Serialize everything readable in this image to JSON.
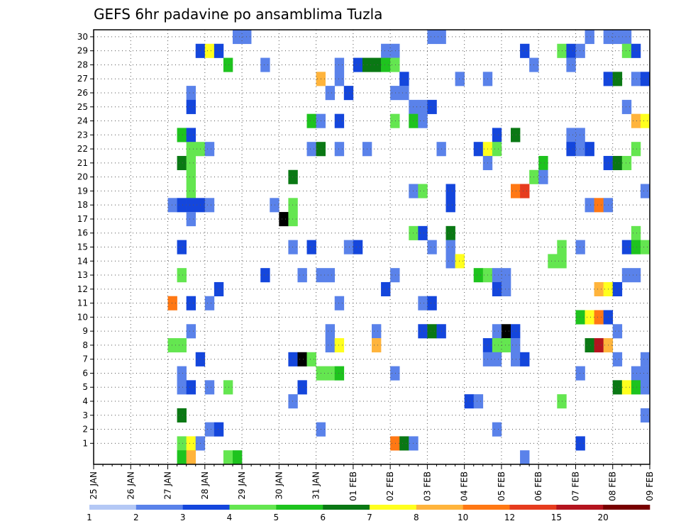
{
  "chart_data": {
    "type": "heatmap",
    "title": "GEFS 6hr padavine po ansamblima Tuzla",
    "xlabel": "",
    "ylabel": "",
    "y_ticks": [
      "1",
      "2",
      "3",
      "4",
      "5",
      "6",
      "7",
      "8",
      "9",
      "10",
      "11",
      "12",
      "13",
      "14",
      "15",
      "16",
      "17",
      "18",
      "19",
      "20",
      "21",
      "22",
      "23",
      "24",
      "25",
      "26",
      "27",
      "28",
      "29",
      "30"
    ],
    "x_ticks": [
      "25 JAN",
      "26 JAN",
      "27 JAN",
      "28 JAN",
      "29 JAN",
      "30 JAN",
      "31 JAN",
      "01 FEB",
      "02 FEB",
      "03 FEB",
      "04 FEB",
      "05 FEB",
      "06 FEB",
      "07 FEB",
      "08 FEB",
      "09 FEB"
    ],
    "x_steps": 60,
    "members": 30,
    "grid": true,
    "legend": {
      "position": "bottom",
      "labels": [
        "1",
        "2",
        "3",
        "4",
        "5",
        "6",
        "7",
        "8",
        "10",
        "12",
        "15",
        "20"
      ],
      "colors": [
        "#b4c8f5",
        "#5a82ea",
        "#1446dc",
        "#64e650",
        "#1ec31e",
        "#0a7814",
        "#ffff1e",
        "#ffb43c",
        "#ff7814",
        "#e63c1e",
        "#b4141e",
        "#780000"
      ]
    },
    "cells": [
      [
        15,
        30,
        1
      ],
      [
        16,
        30,
        1
      ],
      [
        36,
        30,
        1
      ],
      [
        37,
        30,
        1
      ],
      [
        53,
        30,
        1
      ],
      [
        55,
        30,
        1
      ],
      [
        56,
        30,
        1
      ],
      [
        57,
        30,
        1
      ],
      [
        11,
        29,
        2
      ],
      [
        12,
        29,
        6
      ],
      [
        13,
        29,
        2
      ],
      [
        31,
        29,
        1
      ],
      [
        32,
        29,
        1
      ],
      [
        46,
        29,
        2
      ],
      [
        50,
        29,
        3
      ],
      [
        51,
        29,
        2
      ],
      [
        52,
        29,
        1
      ],
      [
        57,
        29,
        3
      ],
      [
        58,
        29,
        2
      ],
      [
        14,
        28,
        4
      ],
      [
        18,
        28,
        1
      ],
      [
        26,
        28,
        1
      ],
      [
        28,
        28,
        2
      ],
      [
        29,
        28,
        5
      ],
      [
        30,
        28,
        5
      ],
      [
        31,
        28,
        4
      ],
      [
        32,
        28,
        3
      ],
      [
        47,
        28,
        1
      ],
      [
        51,
        28,
        1
      ],
      [
        24,
        27,
        7
      ],
      [
        26,
        27,
        1
      ],
      [
        33,
        27,
        2
      ],
      [
        39,
        27,
        1
      ],
      [
        42,
        27,
        1
      ],
      [
        55,
        27,
        2
      ],
      [
        56,
        27,
        5
      ],
      [
        58,
        27,
        1
      ],
      [
        59,
        27,
        2
      ],
      [
        10,
        26,
        1
      ],
      [
        25,
        26,
        1
      ],
      [
        27,
        26,
        2
      ],
      [
        32,
        26,
        1
      ],
      [
        33,
        26,
        1
      ],
      [
        10,
        25,
        2
      ],
      [
        34,
        25,
        1
      ],
      [
        35,
        25,
        1
      ],
      [
        36,
        25,
        2
      ],
      [
        57,
        25,
        1
      ],
      [
        23,
        24,
        4
      ],
      [
        24,
        24,
        1
      ],
      [
        26,
        24,
        2
      ],
      [
        32,
        24,
        3
      ],
      [
        34,
        24,
        4
      ],
      [
        35,
        24,
        1
      ],
      [
        58,
        24,
        7
      ],
      [
        59,
        24,
        6
      ],
      [
        9,
        23,
        4
      ],
      [
        10,
        23,
        2
      ],
      [
        43,
        23,
        2
      ],
      [
        45,
        23,
        5
      ],
      [
        51,
        23,
        1
      ],
      [
        52,
        23,
        1
      ],
      [
        10,
        22,
        3
      ],
      [
        11,
        22,
        3
      ],
      [
        12,
        22,
        1
      ],
      [
        23,
        22,
        1
      ],
      [
        24,
        22,
        5
      ],
      [
        26,
        22,
        1
      ],
      [
        29,
        22,
        1
      ],
      [
        37,
        22,
        1
      ],
      [
        41,
        22,
        2
      ],
      [
        42,
        22,
        6
      ],
      [
        43,
        22,
        3
      ],
      [
        51,
        22,
        2
      ],
      [
        52,
        22,
        1
      ],
      [
        53,
        22,
        2
      ],
      [
        58,
        22,
        3
      ],
      [
        9,
        21,
        5
      ],
      [
        10,
        21,
        3
      ],
      [
        42,
        21,
        1
      ],
      [
        48,
        21,
        4
      ],
      [
        55,
        21,
        2
      ],
      [
        56,
        21,
        5
      ],
      [
        57,
        21,
        3
      ],
      [
        10,
        20,
        3
      ],
      [
        21,
        20,
        5
      ],
      [
        47,
        20,
        3
      ],
      [
        48,
        20,
        1
      ],
      [
        10,
        19,
        3
      ],
      [
        34,
        19,
        1
      ],
      [
        35,
        19,
        3
      ],
      [
        38,
        19,
        2
      ],
      [
        45,
        19,
        8
      ],
      [
        46,
        19,
        9
      ],
      [
        59,
        19,
        1
      ],
      [
        8,
        18,
        1
      ],
      [
        9,
        18,
        2
      ],
      [
        10,
        18,
        2
      ],
      [
        11,
        18,
        2
      ],
      [
        12,
        18,
        1
      ],
      [
        19,
        18,
        1
      ],
      [
        21,
        18,
        3
      ],
      [
        38,
        18,
        2
      ],
      [
        53,
        18,
        1
      ],
      [
        54,
        18,
        8
      ],
      [
        55,
        18,
        1
      ],
      [
        10,
        17,
        1
      ],
      [
        20,
        17,
        12
      ],
      [
        21,
        17,
        3
      ],
      [
        34,
        16,
        3
      ],
      [
        35,
        16,
        2
      ],
      [
        38,
        16,
        5
      ],
      [
        58,
        16,
        3
      ],
      [
        9,
        15,
        2
      ],
      [
        21,
        15,
        1
      ],
      [
        23,
        15,
        2
      ],
      [
        27,
        15,
        1
      ],
      [
        28,
        15,
        2
      ],
      [
        36,
        15,
        1
      ],
      [
        38,
        15,
        1
      ],
      [
        50,
        15,
        3
      ],
      [
        52,
        15,
        1
      ],
      [
        57,
        15,
        2
      ],
      [
        58,
        15,
        4
      ],
      [
        59,
        15,
        3
      ],
      [
        38,
        14,
        1
      ],
      [
        39,
        14,
        6
      ],
      [
        49,
        14,
        3
      ],
      [
        50,
        14,
        3
      ],
      [
        9,
        13,
        3
      ],
      [
        18,
        13,
        2
      ],
      [
        22,
        13,
        1
      ],
      [
        24,
        13,
        1
      ],
      [
        25,
        13,
        1
      ],
      [
        32,
        13,
        1
      ],
      [
        41,
        13,
        4
      ],
      [
        42,
        13,
        3
      ],
      [
        43,
        13,
        1
      ],
      [
        44,
        13,
        1
      ],
      [
        57,
        13,
        1
      ],
      [
        58,
        13,
        1
      ],
      [
        13,
        12,
        2
      ],
      [
        31,
        12,
        2
      ],
      [
        43,
        12,
        2
      ],
      [
        44,
        12,
        1
      ],
      [
        54,
        12,
        7
      ],
      [
        55,
        12,
        6
      ],
      [
        56,
        12,
        2
      ],
      [
        8,
        11,
        8
      ],
      [
        10,
        11,
        2
      ],
      [
        12,
        11,
        1
      ],
      [
        26,
        11,
        1
      ],
      [
        35,
        11,
        1
      ],
      [
        36,
        11,
        2
      ],
      [
        52,
        10,
        4
      ],
      [
        53,
        10,
        6
      ],
      [
        54,
        10,
        8
      ],
      [
        55,
        10,
        2
      ],
      [
        10,
        9,
        1
      ],
      [
        25,
        9,
        1
      ],
      [
        30,
        9,
        1
      ],
      [
        35,
        9,
        2
      ],
      [
        36,
        9,
        5
      ],
      [
        37,
        9,
        2
      ],
      [
        43,
        9,
        1
      ],
      [
        44,
        9,
        12
      ],
      [
        45,
        9,
        2
      ],
      [
        56,
        9,
        1
      ],
      [
        8,
        8,
        3
      ],
      [
        9,
        8,
        3
      ],
      [
        25,
        8,
        1
      ],
      [
        26,
        8,
        6
      ],
      [
        30,
        8,
        7
      ],
      [
        42,
        8,
        2
      ],
      [
        43,
        8,
        3
      ],
      [
        44,
        8,
        3
      ],
      [
        45,
        8,
        1
      ],
      [
        53,
        8,
        5
      ],
      [
        54,
        8,
        10
      ],
      [
        55,
        8,
        7
      ],
      [
        11,
        7,
        2
      ],
      [
        21,
        7,
        2
      ],
      [
        22,
        7,
        13
      ],
      [
        23,
        7,
        3
      ],
      [
        42,
        7,
        1
      ],
      [
        43,
        7,
        1
      ],
      [
        45,
        7,
        1
      ],
      [
        46,
        7,
        2
      ],
      [
        56,
        7,
        1
      ],
      [
        59,
        7,
        1
      ],
      [
        9,
        6,
        1
      ],
      [
        24,
        6,
        3
      ],
      [
        25,
        6,
        3
      ],
      [
        26,
        6,
        4
      ],
      [
        32,
        6,
        1
      ],
      [
        52,
        6,
        1
      ],
      [
        58,
        6,
        1
      ],
      [
        59,
        6,
        1
      ],
      [
        9,
        5,
        1
      ],
      [
        10,
        5,
        2
      ],
      [
        12,
        5,
        1
      ],
      [
        14,
        5,
        3
      ],
      [
        22,
        5,
        2
      ],
      [
        56,
        5,
        5
      ],
      [
        57,
        5,
        6
      ],
      [
        58,
        5,
        4
      ],
      [
        59,
        5,
        1
      ],
      [
        21,
        4,
        1
      ],
      [
        40,
        4,
        2
      ],
      [
        41,
        4,
        1
      ],
      [
        50,
        4,
        3
      ],
      [
        9,
        3,
        5
      ],
      [
        59,
        3,
        1
      ],
      [
        12,
        2,
        1
      ],
      [
        13,
        2,
        2
      ],
      [
        24,
        2,
        1
      ],
      [
        43,
        2,
        1
      ],
      [
        9,
        1,
        3
      ],
      [
        10,
        1,
        6
      ],
      [
        11,
        1,
        1
      ],
      [
        32,
        1,
        8
      ],
      [
        33,
        1,
        5
      ],
      [
        34,
        1,
        1
      ],
      [
        52,
        1,
        2
      ],
      [
        9,
        0,
        4
      ],
      [
        10,
        0,
        7
      ],
      [
        14,
        0,
        3
      ],
      [
        15,
        0,
        4
      ],
      [
        46,
        0,
        1
      ]
    ]
  }
}
